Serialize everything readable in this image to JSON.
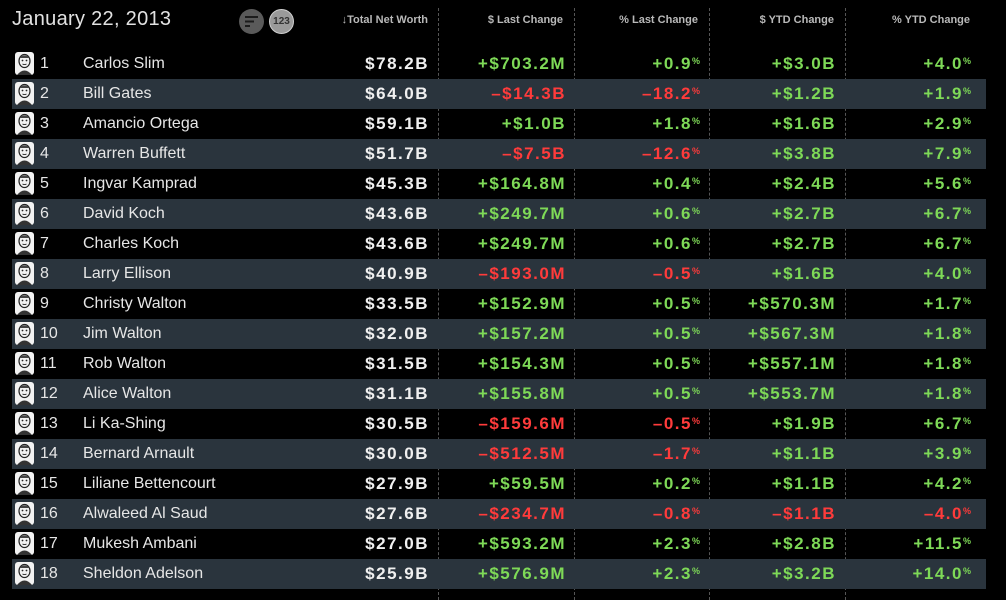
{
  "header": {
    "date": "January 22, 2013",
    "sort_icon": "sort-lines-icon",
    "numeric_toggle_label": "123",
    "columns": {
      "net_worth": "↓Total Net Worth",
      "last_change": "$ Last Change",
      "last_change_pct": "% Last Change",
      "ytd_change": "$ YTD Change",
      "ytd_change_pct": "% YTD Change"
    }
  },
  "colors": {
    "positive": "#7ed957",
    "negative": "#ff3b3b",
    "row_alt": "#2a343d",
    "background": "#000000"
  },
  "rows": [
    {
      "rank": "1",
      "name": "Carlos Slim",
      "worth": "$78.2B",
      "last": "+$703.2M",
      "last_pct": "+0.9",
      "ytd": "+$3.0B",
      "ytd_pct": "+4.0"
    },
    {
      "rank": "2",
      "name": "Bill Gates",
      "worth": "$64.0B",
      "last": "–$14.3B",
      "last_pct": "–18.2",
      "ytd": "+$1.2B",
      "ytd_pct": "+1.9"
    },
    {
      "rank": "3",
      "name": "Amancio Ortega",
      "worth": "$59.1B",
      "last": "+$1.0B",
      "last_pct": "+1.8",
      "ytd": "+$1.6B",
      "ytd_pct": "+2.9"
    },
    {
      "rank": "4",
      "name": "Warren Buffett",
      "worth": "$51.7B",
      "last": "–$7.5B",
      "last_pct": "–12.6",
      "ytd": "+$3.8B",
      "ytd_pct": "+7.9"
    },
    {
      "rank": "5",
      "name": "Ingvar Kamprad",
      "worth": "$45.3B",
      "last": "+$164.8M",
      "last_pct": "+0.4",
      "ytd": "+$2.4B",
      "ytd_pct": "+5.6"
    },
    {
      "rank": "6",
      "name": "David Koch",
      "worth": "$43.6B",
      "last": "+$249.7M",
      "last_pct": "+0.6",
      "ytd": "+$2.7B",
      "ytd_pct": "+6.7"
    },
    {
      "rank": "7",
      "name": "Charles Koch",
      "worth": "$43.6B",
      "last": "+$249.7M",
      "last_pct": "+0.6",
      "ytd": "+$2.7B",
      "ytd_pct": "+6.7"
    },
    {
      "rank": "8",
      "name": "Larry Ellison",
      "worth": "$40.9B",
      "last": "–$193.0M",
      "last_pct": "–0.5",
      "ytd": "+$1.6B",
      "ytd_pct": "+4.0"
    },
    {
      "rank": "9",
      "name": "Christy Walton",
      "worth": "$33.5B",
      "last": "+$152.9M",
      "last_pct": "+0.5",
      "ytd": "+$570.3M",
      "ytd_pct": "+1.7"
    },
    {
      "rank": "10",
      "name": "Jim Walton",
      "worth": "$32.0B",
      "last": "+$157.2M",
      "last_pct": "+0.5",
      "ytd": "+$567.3M",
      "ytd_pct": "+1.8"
    },
    {
      "rank": "11",
      "name": "Rob Walton",
      "worth": "$31.5B",
      "last": "+$154.3M",
      "last_pct": "+0.5",
      "ytd": "+$557.1M",
      "ytd_pct": "+1.8"
    },
    {
      "rank": "12",
      "name": "Alice Walton",
      "worth": "$31.1B",
      "last": "+$155.8M",
      "last_pct": "+0.5",
      "ytd": "+$553.7M",
      "ytd_pct": "+1.8"
    },
    {
      "rank": "13",
      "name": "Li Ka-Shing",
      "worth": "$30.5B",
      "last": "–$159.6M",
      "last_pct": "–0.5",
      "ytd": "+$1.9B",
      "ytd_pct": "+6.7"
    },
    {
      "rank": "14",
      "name": "Bernard Arnault",
      "worth": "$30.0B",
      "last": "–$512.5M",
      "last_pct": "–1.7",
      "ytd": "+$1.1B",
      "ytd_pct": "+3.9"
    },
    {
      "rank": "15",
      "name": "Liliane Bettencourt",
      "worth": "$27.9B",
      "last": "+$59.5M",
      "last_pct": "+0.2",
      "ytd": "+$1.1B",
      "ytd_pct": "+4.2"
    },
    {
      "rank": "16",
      "name": "Alwaleed Al Saud",
      "worth": "$27.6B",
      "last": "–$234.7M",
      "last_pct": "–0.8",
      "ytd": "–$1.1B",
      "ytd_pct": "–4.0"
    },
    {
      "rank": "17",
      "name": "Mukesh Ambani",
      "worth": "$27.0B",
      "last": "+$593.2M",
      "last_pct": "+2.3",
      "ytd": "+$2.8B",
      "ytd_pct": "+11.5"
    },
    {
      "rank": "18",
      "name": "Sheldon Adelson",
      "worth": "$25.9B",
      "last": "+$576.9M",
      "last_pct": "+2.3",
      "ytd": "+$3.2B",
      "ytd_pct": "+14.0"
    }
  ]
}
